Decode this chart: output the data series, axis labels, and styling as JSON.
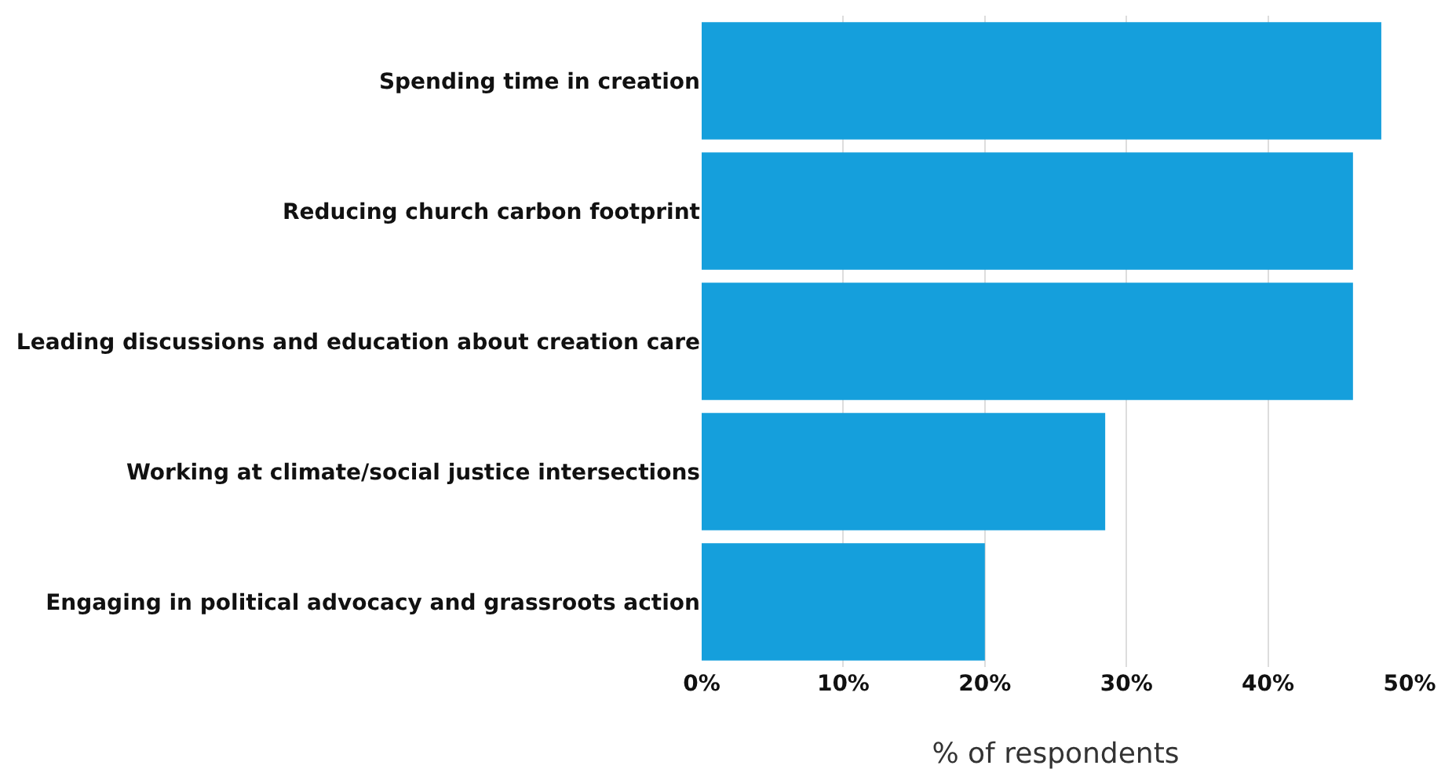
{
  "chart_data": {
    "type": "bar",
    "orientation": "horizontal",
    "categories": [
      "Spending time in creation",
      "Reducing church carbon footprint",
      "Leading discussions and education about creation care",
      "Working at climate/social justice intersections",
      "Engaging in political advocacy and grassroots action"
    ],
    "values": [
      48,
      46,
      46,
      28.5,
      20
    ],
    "color": "#159fdc",
    "xlabel": "% of respondents",
    "xlim": [
      0,
      50
    ],
    "xticks": [
      {
        "value": 0,
        "label": "0%"
      },
      {
        "value": 10,
        "label": "10%"
      },
      {
        "value": 20,
        "label": "20%"
      },
      {
        "value": 30,
        "label": "30%"
      },
      {
        "value": 40,
        "label": "40%"
      },
      {
        "value": 50,
        "label": "50%"
      }
    ],
    "grid": "x",
    "legend": false
  }
}
